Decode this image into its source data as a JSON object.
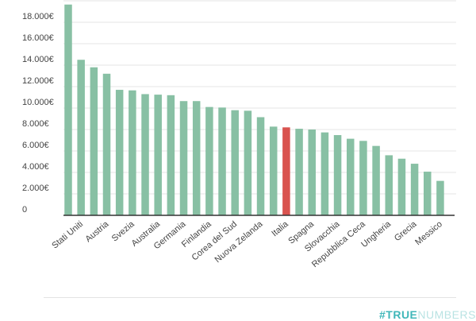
{
  "chart_data": {
    "type": "bar",
    "categories": [
      "",
      "Stati Uniti",
      "",
      "Austria",
      "",
      "Svezia",
      "",
      "Australia",
      "",
      "Germania",
      "",
      "Finlandia",
      "",
      "Corea del Sud",
      "",
      "Nuova Zelanda",
      "",
      "Italia",
      "",
      "Spagna",
      "",
      "Slovacchia",
      "",
      "Repubblica Ceca",
      "",
      "Ungheria",
      "",
      "Grecia",
      "",
      "Messico"
    ],
    "values": [
      19650,
      14500,
      13800,
      13200,
      11700,
      11650,
      11300,
      11250,
      11200,
      10650,
      10650,
      10100,
      10050,
      9800,
      9750,
      9150,
      8270,
      8200,
      8070,
      8000,
      7730,
      7480,
      7140,
      6940,
      6470,
      5600,
      5280,
      4810,
      4070,
      3210
    ],
    "highlight_index": 17,
    "yticks": [
      "0",
      "2.000€",
      "4.000€",
      "6.000€",
      "8.000€",
      "10.000€",
      "12.000€",
      "14.000€",
      "16.000€",
      "18.000€"
    ],
    "ylim": [
      0,
      20000
    ],
    "grid": true,
    "colors": {
      "bar": "#88c0a4",
      "highlight": "#d9534f",
      "grid": "#e5e5e5",
      "axis": "#333333"
    }
  },
  "watermark": {
    "part1": "#TRUE",
    "part2": "NUMBERS"
  }
}
